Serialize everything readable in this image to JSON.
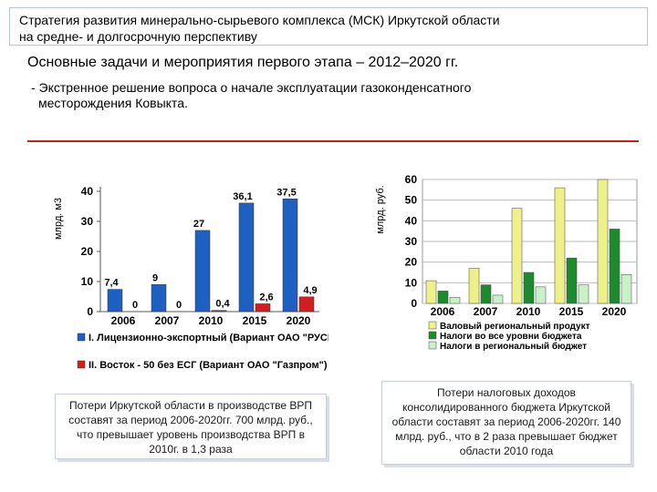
{
  "header": {
    "title_line1": "Стратегия развития минерально-сырьевого комплекса (МСК) Иркутской области",
    "title_line2": "на средне- и долгосрочную перспективу"
  },
  "subtitle": "Основные задачи и мероприятия первого этапа – 2012–2020 гг.",
  "task": {
    "line1": "- Экстренное решение вопроса о начале эксплуатации газоконденсатного",
    "line2": "месторождения Ковыкта."
  },
  "chart_data": [
    {
      "type": "bar",
      "ylabel": "млрд. м3",
      "ylim": [
        0,
        40
      ],
      "yticks": [
        0,
        10,
        20,
        30,
        40
      ],
      "categories": [
        "2006",
        "2007",
        "2010",
        "2015",
        "2020"
      ],
      "series": [
        {
          "name": "I. Лицензионно-экспортный (Вариант ОАО \"РУСИА-Петролеум\")",
          "color": "#1f5fbf",
          "values": [
            7.4,
            9,
            27,
            36.1,
            37.5
          ],
          "labels": [
            "7,4",
            "9",
            "27",
            "36,1",
            "37,5"
          ]
        },
        {
          "name": "II. Восток - 50 без ЕСГ (Вариант ОАО \"Газпром\")",
          "color": "#d21f1f",
          "values": [
            0,
            0,
            0.4,
            2.6,
            4.9
          ],
          "labels": [
            "0",
            "0",
            "0,4",
            "2,6",
            "4,9"
          ]
        }
      ],
      "legend_position": "bottom"
    },
    {
      "type": "bar",
      "ylabel": "млрд. руб.",
      "ylim": [
        0,
        60
      ],
      "yticks": [
        0,
        10,
        20,
        30,
        40,
        50,
        60
      ],
      "categories": [
        "2006",
        "2007",
        "2010",
        "2015",
        "2020"
      ],
      "series": [
        {
          "name": "Валовый региональный продукт",
          "color": "#eef08a",
          "values": [
            11,
            17,
            46,
            56,
            60
          ]
        },
        {
          "name": "Налоги во все уровни бюджета",
          "color": "#1e8a2e",
          "values": [
            6,
            9,
            15,
            22,
            36
          ]
        },
        {
          "name": "Налоги в региональный бюджет",
          "color": "#c9f0c9",
          "values": [
            3,
            4,
            8,
            9,
            14
          ]
        }
      ],
      "legend_position": "bottom"
    }
  ],
  "notes": {
    "left": "Потери Иркутской области в производстве ВРП составят за период 2006-2020гг. 700 млрд. руб., что превышает уровень производства ВРП в 2010г. в 1,3 раза",
    "right": "Потери налоговых доходов консолидированного бюджета Иркутской области составят за период 2006-2020гг. 140 млрд. руб., что в 2 раза превышает бюджет области 2010 года"
  }
}
